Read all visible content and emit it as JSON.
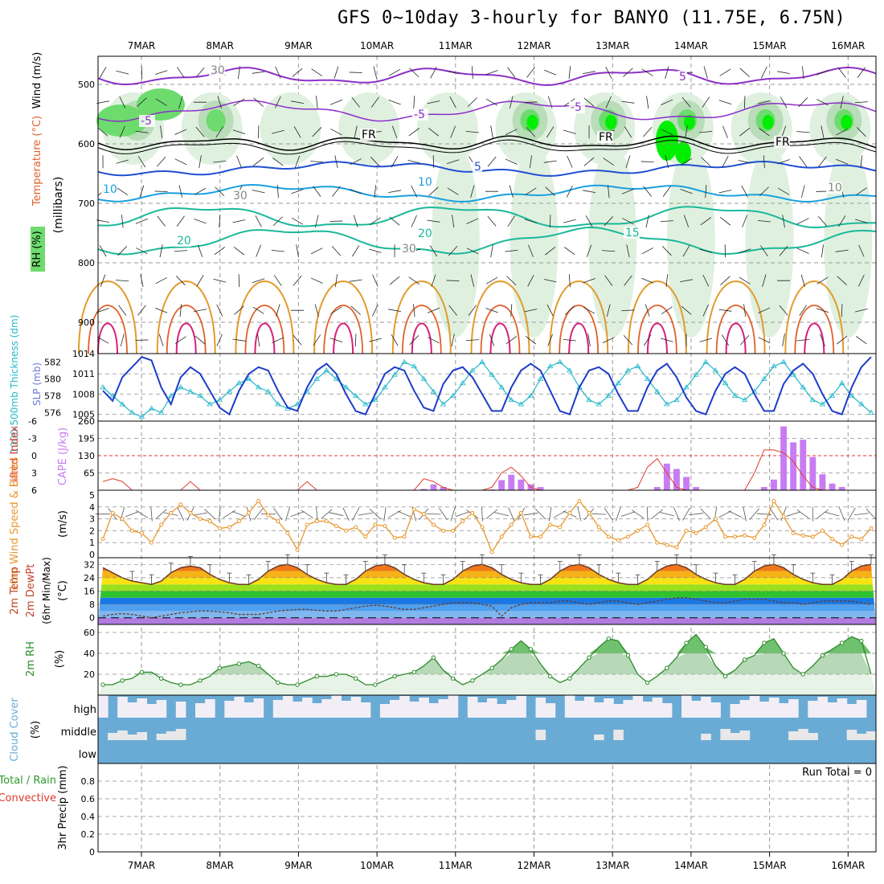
{
  "title": "GFS 0~10day 3-hourly for BANYO (11.75E, 6.75N)",
  "dates": [
    "7MAR",
    "8MAR",
    "9MAR",
    "10MAR",
    "11MAR",
    "12MAR",
    "13MAR",
    "14MAR",
    "15MAR",
    "16MAR"
  ],
  "run_total_label": "Run Total = 0",
  "colors": {
    "rh_green_light": "#dff0df",
    "rh_green_mid": "#6ddb6d",
    "rh_green_bright": "#00ee00",
    "temp_purple": "#8b2fc9",
    "temp_blue": "#1f4fd1",
    "temp_cyan": "#1aa0e0",
    "temp_teal": "#1ab89a",
    "temp_orange": "#e39a2b",
    "temp_red_orange": "#e0602a",
    "temp_magenta": "#d8207a",
    "slp_line": "#1e3cc8",
    "thickness_line": "#22b8c8",
    "cape_bar": "#c77cf2",
    "lifted_index": "#e03a2a",
    "wind_speed": "#e8972e",
    "rh2m": "#2a8a2a",
    "cloud": "#6aabd6",
    "cloud_high_bg": "#f2eef6"
  },
  "panels": {
    "upper": {
      "ylabel_parts": [
        "RH (%)",
        "Temperature (°C)",
        "Wind (m/s)"
      ],
      "ylabel_vertical": "(millibars)",
      "levels": [
        "500",
        "600",
        "700",
        "800",
        "900"
      ],
      "contour_labels": [
        "5",
        "-5",
        "-5",
        "-5",
        "FR",
        "FR",
        "FR",
        "5",
        "10",
        "10",
        "30",
        "10",
        "15",
        "20",
        "20",
        "30",
        "30"
      ]
    },
    "slp": {
      "ylabel": "SLP (mb)",
      "ylabel2": "1000-500mb Thickness (dm)",
      "left_ticks": [
        "582",
        "580",
        "578",
        "576"
      ],
      "right_ticks": [
        "1014",
        "1011",
        "1008",
        "1005"
      ]
    },
    "cape": {
      "ylabel": "Lifted Index",
      "ylabel2": "CAPE (J/kg)",
      "left_ticks": [
        "-6",
        "-3",
        "0",
        "3",
        "6"
      ],
      "right_ticks": [
        "260",
        "195",
        "130",
        "65"
      ]
    },
    "wind10m": {
      "ylabel": "10m Wind Speed & Barbs",
      "ylabel2": "(m/s)",
      "ticks": [
        "5",
        "4",
        "3",
        "2",
        "1",
        "0"
      ]
    },
    "temp2m": {
      "ylabel": "2m Temp",
      "ylabel2": "2m DewPt",
      "ylabel3": "(6hr Min/Max)",
      "unit": "(°C)",
      "ticks": [
        "32",
        "24",
        "16",
        "8",
        "0"
      ]
    },
    "rh2m": {
      "ylabel": "2m RH",
      "unit": "(%)",
      "ticks": [
        "60",
        "40",
        "20"
      ]
    },
    "cloud": {
      "ylabel": "Cloud Cover",
      "unit": "(%)",
      "levels": [
        "high",
        "middle",
        "low"
      ]
    },
    "precip": {
      "ylabel": "Total / Rain",
      "ylabel_conv": "Convective",
      "ylabel3": "3hr Precip (mm)",
      "ticks": [
        "0.8",
        "0.6",
        "0.4",
        "0.2",
        "0"
      ]
    }
  },
  "chart_data": [
    {
      "type": "line",
      "title": "SLP (mb)",
      "series": [
        {
          "name": "SLP (mb)",
          "values": [
            1008.5,
            1007,
            1010.5,
            1012,
            1013.5,
            1013,
            1009,
            1006.5,
            1010.5,
            1012,
            1011,
            1008.5,
            1006,
            1005,
            1008.5,
            1011,
            1012,
            1011.5,
            1008.5,
            1006,
            1005.5,
            1009,
            1011.5,
            1012.5,
            1011,
            1008,
            1005.5,
            1005,
            1008,
            1011,
            1012,
            1011.5,
            1008.5,
            1006,
            1005.5,
            1009.5,
            1011.5,
            1012,
            1010.5,
            1008,
            1005.5,
            1005.5,
            1009,
            1011.5,
            1012.5,
            1011.5,
            1008.5,
            1005.5,
            1005,
            1009,
            1011.5,
            1012,
            1011,
            1008,
            1005.5,
            1005.5,
            1009,
            1011.5,
            1012.5,
            1010.5,
            1007.5,
            1005.5,
            1005,
            1008.5,
            1011,
            1012,
            1011,
            1008,
            1005.5,
            1005.5,
            1009.5,
            1011.5,
            1012.5,
            1011,
            1008,
            1005.5,
            1005,
            1009,
            1012,
            1013.5
          ]
        },
        {
          "name": "1000-500mb Thickness (dm)",
          "values": [
            579,
            578,
            577,
            576,
            575.5,
            576.5,
            576,
            578,
            579,
            578.5,
            578,
            577,
            577.5,
            578.5,
            579.5,
            580,
            579,
            578.5,
            577,
            576.5,
            577,
            578.5,
            580,
            581,
            580,
            579,
            578,
            577,
            577.5,
            579,
            580.5,
            582,
            581.5,
            580,
            578.5,
            577,
            578,
            579.5,
            581,
            582,
            580.5,
            579,
            577.5,
            577,
            578,
            580,
            581.5,
            582,
            581,
            579,
            577.5,
            577,
            578,
            579.5,
            581,
            581.5,
            580,
            578.5,
            577,
            577.5,
            579,
            580.5,
            582,
            581,
            579.5,
            578,
            577.5,
            578.5,
            580,
            581.5,
            582,
            580.5,
            579,
            577.5,
            577,
            578,
            579.5,
            578,
            577,
            576
          ]
        }
      ],
      "ylim_left": [
        575,
        583
      ],
      "ylim_right": [
        1004,
        1014
      ]
    },
    {
      "type": "bar",
      "title": "CAPE (J/kg)",
      "series": [
        {
          "name": "CAPE (J/kg)",
          "values": [
            0,
            0,
            0,
            0,
            0,
            0,
            0,
            0,
            0,
            0,
            0,
            0,
            0,
            0,
            0,
            0,
            0,
            0,
            0,
            0,
            0,
            0,
            0,
            0,
            0,
            0,
            0,
            0,
            0,
            0,
            0,
            0,
            0,
            5,
            22,
            12,
            0,
            0,
            0,
            0,
            3,
            38,
            58,
            40,
            22,
            12,
            0,
            0,
            0,
            0,
            0,
            0,
            0,
            0,
            0,
            0,
            0,
            12,
            100,
            80,
            50,
            12,
            0,
            0,
            0,
            0,
            0,
            0,
            12,
            40,
            240,
            180,
            190,
            125,
            60,
            25,
            12,
            0,
            0,
            0
          ]
        },
        {
          "name": "Lifted Index",
          "values": [
            4.5,
            4,
            4.5,
            6,
            6,
            6,
            6,
            6,
            6,
            4.5,
            6,
            6,
            6,
            6,
            6,
            6,
            6,
            6,
            6,
            6,
            6,
            4.5,
            6,
            6,
            6,
            6,
            6,
            6,
            6,
            6,
            6,
            6,
            6,
            4,
            4.5,
            5.5,
            6,
            6,
            6,
            6,
            5.5,
            3,
            2,
            3.5,
            5.5,
            6,
            6,
            6,
            6,
            6,
            6,
            6,
            6,
            6,
            6,
            5.5,
            2,
            0.5,
            3,
            5.5,
            6,
            6,
            6,
            6,
            6,
            6,
            6,
            3,
            -1,
            -1,
            -0.5,
            1,
            3.5,
            5.5,
            6,
            6,
            6,
            6,
            6,
            6
          ]
        }
      ],
      "ylim_left": [
        -6,
        6
      ],
      "ylim_right": [
        0,
        260
      ]
    },
    {
      "type": "line",
      "title": "10m Wind Speed",
      "series": [
        {
          "name": "10m Wind Speed (m/s)",
          "values": [
            1.3,
            3.5,
            3,
            2,
            1.8,
            1,
            2.5,
            3.5,
            4.2,
            3.5,
            3,
            2.8,
            2.2,
            2.3,
            2.8,
            3.5,
            4.5,
            3.3,
            2.8,
            1.8,
            0.4,
            2.5,
            2.8,
            2.8,
            2.4,
            2,
            2.3,
            1.5,
            2.5,
            2.4,
            1.4,
            1.5,
            3.8,
            3.4,
            2.5,
            2,
            2,
            2.8,
            3.5,
            2.3,
            0.2,
            1.5,
            2.5,
            3.5,
            1.5,
            1.5,
            2.5,
            2.3,
            3.5,
            4.5,
            3.5,
            2.3,
            1.5,
            1.2,
            1.5,
            2,
            2.5,
            1,
            0.8,
            0.6,
            2,
            1.8,
            2.3,
            3,
            1.5,
            1.5,
            1.6,
            1.4,
            2.5,
            4.5,
            3.2,
            1.8,
            1.6,
            1.5,
            2,
            1.3,
            0.8,
            1.5,
            1.3,
            2.2
          ]
        }
      ],
      "ylim": [
        0,
        5
      ]
    },
    {
      "type": "area",
      "title": "2m Temp / DewPt",
      "series": [
        {
          "name": "2m Temp (°C)",
          "values": [
            30,
            27,
            24,
            22,
            21,
            20,
            22,
            27,
            30,
            31,
            30,
            26,
            23,
            21,
            20,
            20,
            23,
            28,
            31,
            32,
            30,
            26,
            23,
            21,
            20,
            20,
            23,
            28,
            31,
            32,
            30,
            26,
            23,
            21,
            20,
            20,
            23,
            28,
            31,
            32,
            30,
            26,
            23,
            21,
            20,
            20,
            23,
            28,
            31,
            32,
            30,
            26,
            23,
            21,
            20,
            20,
            23,
            28,
            31,
            32,
            30,
            26,
            23,
            21,
            20,
            20,
            23,
            28,
            31,
            32,
            30,
            26,
            23,
            21,
            20,
            20,
            23,
            28,
            31,
            32
          ]
        },
        {
          "name": "2m DewPt (°C)",
          "values": [
            1,
            2,
            2.5,
            2,
            1,
            0,
            1,
            2,
            3,
            3.5,
            4,
            4,
            3.5,
            3,
            2,
            2,
            2,
            3,
            4,
            4.5,
            5,
            5,
            4.5,
            4,
            4,
            5,
            6,
            7,
            7.5,
            7,
            6,
            5,
            5,
            6,
            7,
            8,
            9,
            9,
            9,
            8,
            7,
            1,
            6,
            8,
            9,
            9,
            9,
            10,
            10,
            9,
            8,
            9,
            10,
            10,
            9,
            8,
            9,
            10,
            11,
            12,
            12,
            11,
            10,
            9,
            9,
            10,
            11,
            11,
            11,
            10,
            9,
            9,
            8,
            9,
            10,
            10,
            10,
            10,
            9,
            8
          ]
        }
      ],
      "ylim": [
        -4,
        36
      ]
    },
    {
      "type": "area",
      "title": "2m RH",
      "series": [
        {
          "name": "2m RH (%)",
          "values": [
            10,
            10,
            14,
            16,
            22,
            22,
            16,
            12,
            10,
            10,
            14,
            18,
            26,
            28,
            30,
            32,
            28,
            20,
            12,
            10,
            10,
            14,
            18,
            18,
            20,
            20,
            16,
            10,
            10,
            14,
            18,
            20,
            22,
            28,
            36,
            24,
            16,
            10,
            14,
            20,
            26,
            34,
            44,
            52,
            44,
            30,
            18,
            12,
            16,
            26,
            36,
            46,
            54,
            52,
            38,
            20,
            12,
            18,
            26,
            36,
            50,
            58,
            46,
            28,
            18,
            24,
            34,
            38,
            50,
            54,
            40,
            26,
            20,
            28,
            38,
            44,
            50,
            56,
            52,
            20
          ]
        }
      ],
      "ylim": [
        0,
        60
      ]
    },
    {
      "type": "bar",
      "title": "3hr Precip (mm)",
      "series": [
        {
          "name": "Total / Rain",
          "values": []
        },
        {
          "name": "Convective",
          "values": []
        }
      ],
      "ylim": [
        0,
        1
      ]
    }
  ]
}
